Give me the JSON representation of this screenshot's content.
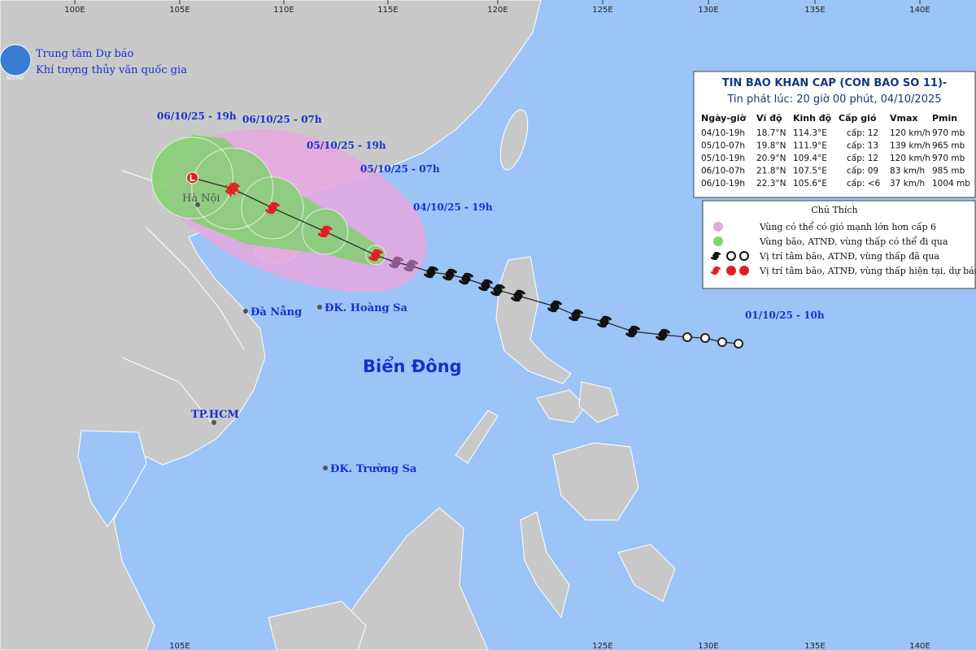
{
  "org": {
    "line1": "Trung tâm Dự báo",
    "line2": "Khí tượng thủy văn quốc gia",
    "logo_text": "NCHMF"
  },
  "longitude_labels_top": [
    "100E",
    "105E",
    "110E",
    "115E",
    "120E",
    "125E",
    "130E",
    "135E",
    "140E"
  ],
  "longitude_labels_bottom": [
    "105E",
    "125E",
    "130E",
    "135E",
    "140E"
  ],
  "track_labels": [
    "06/10/25 - 19h",
    "06/10/25 - 07h",
    "05/10/25 - 19h",
    "05/10/25 - 07h",
    "04/10/25 - 19h",
    "01/10/25 - 10h"
  ],
  "places": [
    "Hà Nội",
    "Đà Nẵng",
    "ĐK. Hoàng Sa",
    "Biển Đông",
    "TP.HCM",
    "ĐK. Trường Sa"
  ],
  "bulletin": {
    "title": "TIN BAO KHAN CAP (CON BAO SO 11)-",
    "issued": "Tin phát lúc: 20 giờ 00 phút, 04/10/2025",
    "columns": [
      "Ngày-giờ",
      "Vĩ độ",
      "Kinh độ",
      "Cấp gió",
      "Vmax",
      "Pmin"
    ],
    "rows": [
      [
        "04/10-19h",
        "18.7°N",
        "114.3°E",
        "cấp: 12",
        "120 km/h",
        "970 mb"
      ],
      [
        "05/10-07h",
        "19.8°N",
        "111.9°E",
        "cấp: 13",
        "139 km/h",
        "965 mb"
      ],
      [
        "05/10-19h",
        "20.9°N",
        "109.4°E",
        "cấp: 12",
        "120 km/h",
        "970 mb"
      ],
      [
        "06/10-07h",
        "21.8°N",
        "107.5°E",
        "cấp: 09",
        "83 km/h",
        "985 mb"
      ],
      [
        "06/10-19h",
        "22.3°N",
        "105.6°E",
        "cấp: <6",
        "37 km/h",
        "1004 mb"
      ]
    ]
  },
  "legend": {
    "title": "Chú Thích",
    "items": [
      "Vùng có thể có gió mạnh lớn hơn cấp 6",
      "Vùng bão, ATNĐ, vùng thấp có thể đi qua",
      "Vị trí tâm bão, ATNĐ, vùng thấp đã qua",
      "Vị trí tâm bão, ATNĐ, vùng thấp hiện tại, dự báo"
    ]
  }
}
